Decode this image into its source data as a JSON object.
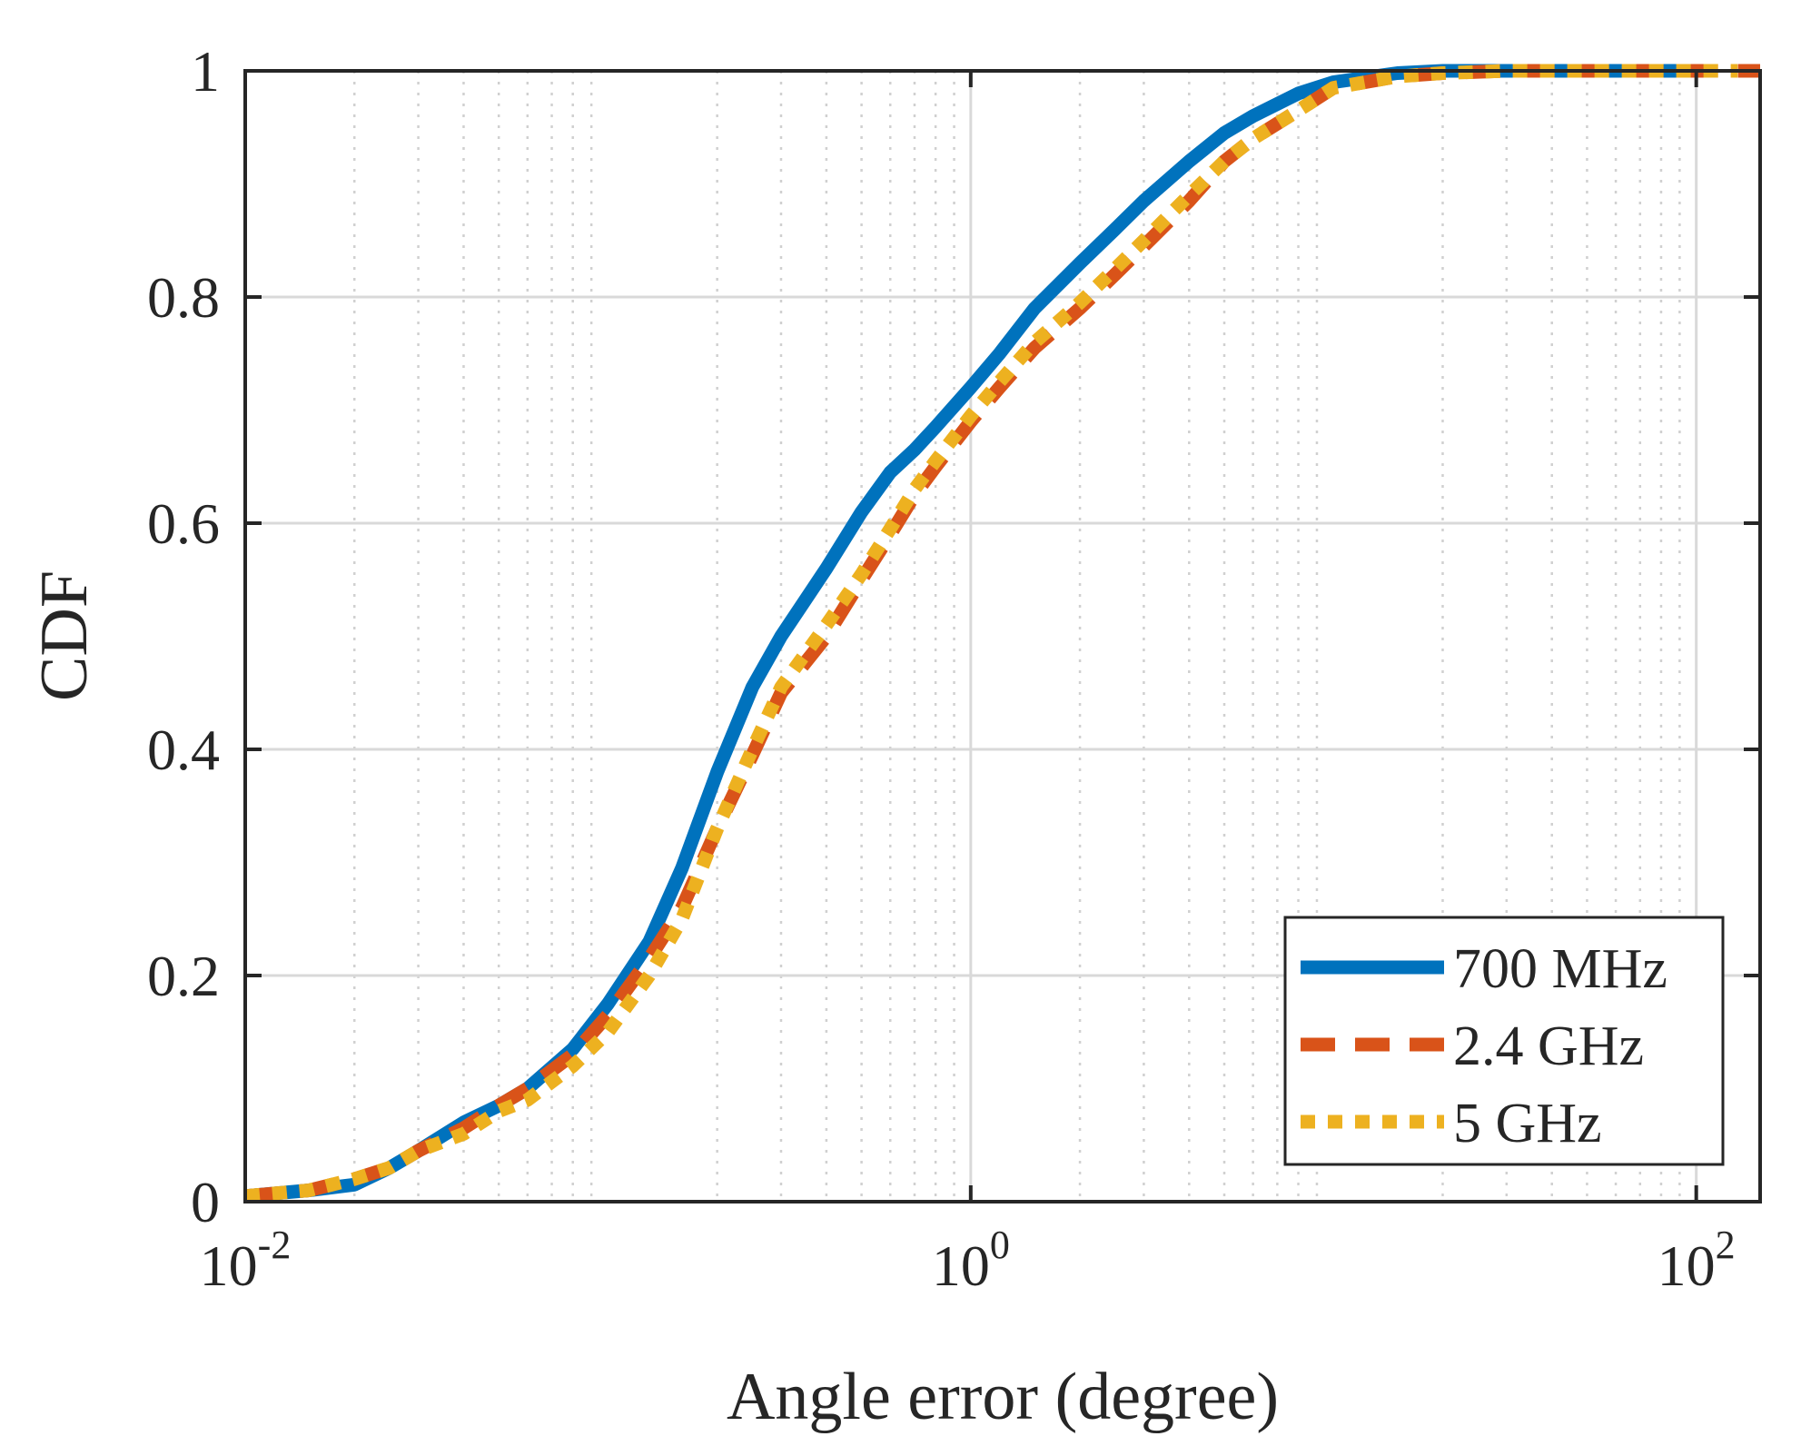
{
  "chart_data": {
    "type": "line",
    "title": "",
    "xlabel": "Angle error (degree)",
    "ylabel": "CDF",
    "xscale": "log",
    "xlim": [
      0.01,
      150
    ],
    "ylim": [
      0,
      1
    ],
    "grid": true,
    "x_ticks": [
      {
        "value": 0.01,
        "base": "10",
        "exp": "-2"
      },
      {
        "value": 1,
        "base": "10",
        "exp": "0"
      },
      {
        "value": 100,
        "base": "10",
        "exp": "2"
      }
    ],
    "y_ticks": [
      {
        "value": 0,
        "label": "0"
      },
      {
        "value": 0.2,
        "label": "0.2"
      },
      {
        "value": 0.4,
        "label": "0.4"
      },
      {
        "value": 0.6,
        "label": "0.6"
      },
      {
        "value": 0.8,
        "label": "0.8"
      },
      {
        "value": 1,
        "label": "1"
      }
    ],
    "legend_position": "bottom-right",
    "series": [
      {
        "name": "700 MHz",
        "color": "#0072BD",
        "style": "solid",
        "x": [
          0.01,
          0.015,
          0.02,
          0.025,
          0.03,
          0.04,
          0.05,
          0.06,
          0.08,
          0.1,
          0.13,
          0.16,
          0.2,
          0.25,
          0.3,
          0.4,
          0.5,
          0.6,
          0.7,
          0.8,
          1.0,
          1.2,
          1.5,
          2.0,
          2.5,
          3,
          4,
          5,
          6,
          8,
          10,
          15,
          20,
          30,
          40,
          50,
          60,
          70,
          100
        ],
        "y": [
          0.005,
          0.01,
          0.015,
          0.03,
          0.045,
          0.07,
          0.085,
          0.1,
          0.135,
          0.175,
          0.23,
          0.295,
          0.38,
          0.455,
          0.5,
          0.56,
          0.61,
          0.645,
          0.665,
          0.685,
          0.72,
          0.75,
          0.79,
          0.83,
          0.86,
          0.885,
          0.92,
          0.945,
          0.96,
          0.98,
          0.99,
          0.998,
          1.0,
          1.0,
          1.0,
          1.0,
          1.0,
          1.0,
          1.0
        ]
      },
      {
        "name": "2.4 GHz",
        "color": "#D95319",
        "style": "dashed",
        "x": [
          0.01,
          0.015,
          0.02,
          0.025,
          0.03,
          0.04,
          0.05,
          0.06,
          0.08,
          0.1,
          0.13,
          0.16,
          0.2,
          0.25,
          0.3,
          0.4,
          0.5,
          0.6,
          0.7,
          0.8,
          1.0,
          1.2,
          1.5,
          2.0,
          2.5,
          3,
          4,
          5,
          6,
          8,
          10,
          15,
          20,
          30,
          40,
          50,
          60,
          70,
          100,
          150
        ],
        "y": [
          0.005,
          0.01,
          0.02,
          0.03,
          0.045,
          0.065,
          0.085,
          0.1,
          0.13,
          0.165,
          0.215,
          0.26,
          0.33,
          0.395,
          0.45,
          0.5,
          0.55,
          0.59,
          0.625,
          0.65,
          0.69,
          0.72,
          0.755,
          0.79,
          0.82,
          0.845,
          0.885,
          0.92,
          0.94,
          0.965,
          0.985,
          0.995,
          0.998,
          1.0,
          1.0,
          1.0,
          1.0,
          1.0,
          1.0,
          1.0
        ]
      },
      {
        "name": "5 GHz",
        "color": "#EDB120",
        "style": "dotted",
        "x": [
          0.01,
          0.015,
          0.02,
          0.025,
          0.03,
          0.04,
          0.05,
          0.06,
          0.08,
          0.1,
          0.13,
          0.16,
          0.2,
          0.25,
          0.3,
          0.4,
          0.5,
          0.6,
          0.7,
          0.8,
          1.0,
          1.2,
          1.5,
          2.0,
          2.5,
          3,
          4,
          5,
          6,
          8,
          10,
          15,
          20,
          30,
          40,
          50,
          60,
          70,
          100,
          130
        ],
        "y": [
          0.005,
          0.01,
          0.02,
          0.03,
          0.045,
          0.06,
          0.08,
          0.09,
          0.12,
          0.15,
          0.2,
          0.25,
          0.33,
          0.4,
          0.455,
          0.51,
          0.555,
          0.595,
          0.63,
          0.655,
          0.695,
          0.725,
          0.76,
          0.795,
          0.825,
          0.85,
          0.89,
          0.92,
          0.94,
          0.965,
          0.985,
          0.995,
          0.998,
          1.0,
          1.0,
          1.0,
          1.0,
          1.0,
          1.0,
          1.0
        ]
      }
    ]
  }
}
